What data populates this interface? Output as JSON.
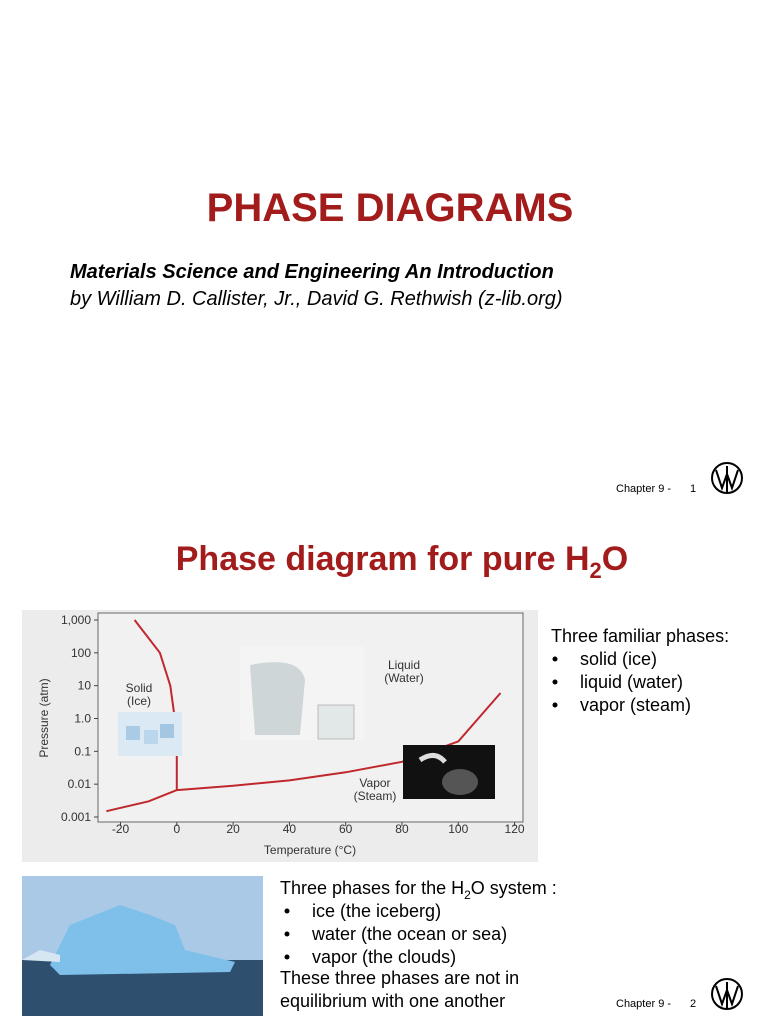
{
  "slide1": {
    "title": "PHASE DIAGRAMS",
    "subtitle": "Materials Science and Engineering An Introduction",
    "authors": "by William D. Callister, Jr., David G. Rethwish (z-lib.org)",
    "footer": "Chapter 9 -",
    "page": "1"
  },
  "slide2": {
    "title": [
      "Phase diagram for pure H",
      "2",
      "O"
    ],
    "side_heading": "Three familiar phases:",
    "side_bullets": [
      "solid (ice)",
      "liquid (water)",
      "vapor (steam)"
    ],
    "lower_heading": [
      "Three phases for the H",
      "2",
      "O system :"
    ],
    "lower_bullets": [
      "ice (the iceberg)",
      "water (the ocean or sea)",
      "vapor (the clouds)"
    ],
    "lower_note": [
      "These three phases are not in",
      "equilibrium with one another"
    ],
    "footer": "Chapter 9 -",
    "page": "2"
  },
  "chart_data": {
    "type": "line",
    "x_label": "Temperature (°C)",
    "y_label": "Pressure (atm)",
    "xlim": [
      -28,
      123
    ],
    "xticks": [
      -20,
      0,
      20,
      40,
      60,
      80,
      100,
      120
    ],
    "ylim": [
      0.001,
      1000
    ],
    "y_log_scale": true,
    "yticks": [
      {
        "value": 1000,
        "label": "1,000"
      },
      100,
      10,
      {
        "value": 1,
        "label": "1.0"
      },
      0.1,
      0.01,
      0.001
    ],
    "annotations": [
      [
        "Solid",
        "(Ice)"
      ],
      [
        "Liquid",
        "(Water)"
      ],
      [
        "Vapor",
        "(Steam)"
      ]
    ],
    "series": [
      {
        "color": "#c0282d",
        "x": [
          -15,
          -6,
          -2.3,
          -0.7,
          0,
          0
        ],
        "values": [
          1000,
          100,
          10,
          1,
          0.1,
          0.0066
        ]
      },
      {
        "color": "#c0282d",
        "x": [
          -25,
          -10,
          0
        ],
        "values": [
          0.0015,
          0.003,
          0.0066
        ]
      },
      {
        "color": "#c0282d",
        "x": [
          0,
          20,
          40,
          60,
          80,
          100,
          115
        ],
        "values": [
          0.0066,
          0.009,
          0.013,
          0.023,
          0.048,
          0.2,
          6
        ]
      }
    ]
  }
}
